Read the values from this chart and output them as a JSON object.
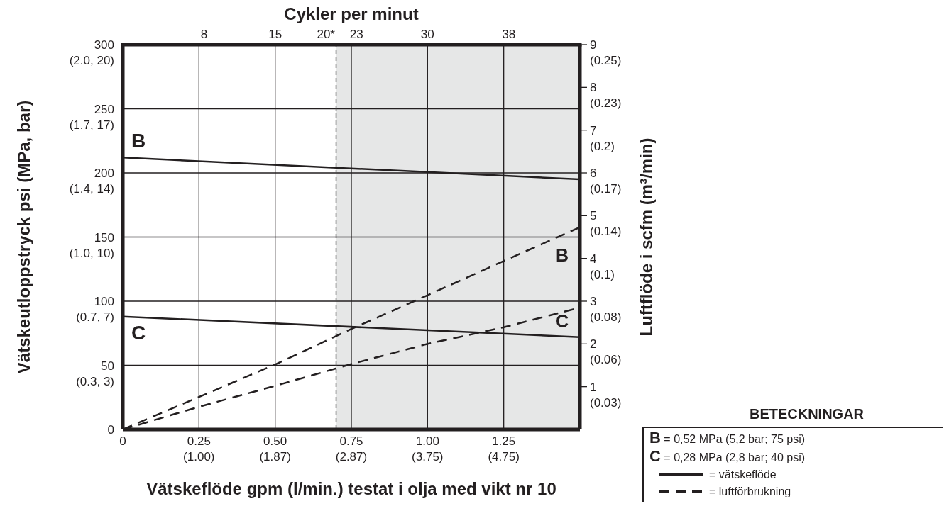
{
  "chart_data": {
    "type": "line",
    "x2label": "Cykler per minut",
    "xlabel": "Vätskeflöde gpm (l/min.) testat i olja med vikt nr 10",
    "ylabel": "Vätskeutloppstryck psi (MPa, bar)",
    "y2label": "Luftflöde i scfm (m³/min)",
    "xlim": [
      0,
      1.5
    ],
    "xticks": [
      0,
      0.25,
      {
        "value": 0.5,
        "label": "0.50"
      },
      0.75,
      {
        "value": 1.0,
        "label": "1.00"
      },
      1.25
    ],
    "x2lim": [
      0,
      45
    ],
    "x2ticks": [
      8,
      15,
      {
        "value": 20,
        "label": "20*"
      },
      23,
      30,
      38
    ],
    "ylim": [
      0,
      300
    ],
    "yticks": [
      0,
      50,
      100,
      150,
      200,
      250,
      300
    ],
    "y2lim": [
      0,
      9
    ],
    "y2ticks": [
      1,
      2,
      3,
      4,
      5,
      6,
      7,
      8,
      9
    ],
    "grid": true,
    "marker": "none",
    "series": [
      {
        "name": "B",
        "color": "#231f20",
        "line_style": "solid",
        "x": [
          0,
          1.5
        ],
        "values": [
          212,
          195
        ]
      },
      {
        "name": "C",
        "color": "#231f20",
        "line_style": "solid",
        "x": [
          0,
          1.5
        ],
        "values": [
          88,
          72
        ]
      },
      {
        "name": "B",
        "color": "#231f20",
        "line_style": "dashed",
        "axis": "y2",
        "x": [
          0,
          0.25,
          0.5,
          0.75,
          1.0,
          1.25,
          1.5
        ],
        "values": [
          0,
          0.76,
          1.52,
          2.35,
          3.14,
          3.94,
          4.73
        ]
      },
      {
        "name": "C",
        "color": "#231f20",
        "line_style": "dashed",
        "axis": "y2",
        "x": [
          0,
          0.25,
          0.5,
          0.75,
          1.0,
          1.25,
          1.5
        ],
        "values": [
          0,
          0.53,
          1.02,
          1.53,
          2.0,
          2.39,
          2.85
        ]
      }
    ],
    "bands": [
      {
        "axis": "x",
        "from": 0.7,
        "to": 1.5,
        "color": "#e6e7e7"
      }
    ],
    "ref_lines": [
      {
        "axis": "x",
        "value": 0.7,
        "color": "#555555",
        "line_style": "dashed"
      }
    ],
    "legend_title": "BETECKNINGAR",
    "annotations": [
      "B = 0,52 MPa (5,2 bar; 75 psi)",
      "C = 0,28 MPa (2,8 bar; 40 psi)",
      "= vätskeflöde",
      "= luftförbrukning",
      "(0.3, 3)",
      "(0.7, 7)",
      "(1.0, 10)",
      "(1.4, 14)",
      "(1.7, 17)",
      "(2.0, 20)",
      "(1.00)",
      "(1.87)",
      "(2.87)",
      "(3.75)",
      "(4.75)",
      "(0.03)",
      "(0.06)",
      "(0.08)",
      "(0.1)",
      "(0.14)",
      "(0.17)",
      "(0.2)",
      "(0.23)",
      "(0.25)"
    ]
  }
}
